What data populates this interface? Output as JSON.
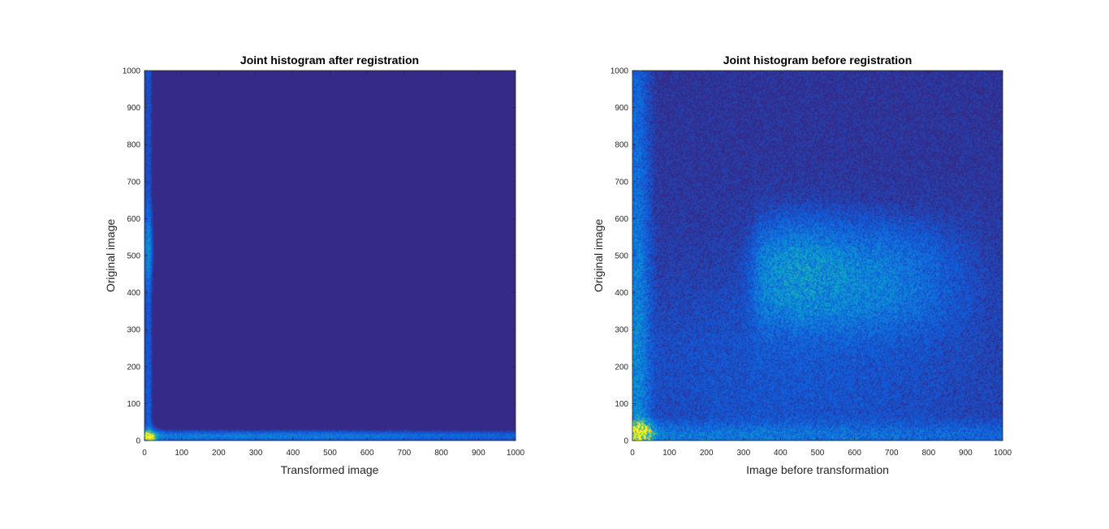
{
  "chart_data": [
    {
      "type": "heatmap",
      "title": "Joint histogram after registration",
      "xlabel": "Transformed image",
      "ylabel": "Original image",
      "xlim": [
        0,
        1000
      ],
      "ylim": [
        0,
        1000
      ],
      "xticks": [
        0,
        100,
        200,
        300,
        400,
        500,
        600,
        700,
        800,
        900,
        1000
      ],
      "yticks": [
        0,
        100,
        200,
        300,
        400,
        500,
        600,
        700,
        800,
        900,
        1000
      ],
      "colormap": "parula",
      "background_color": "#352a87",
      "density_features": [
        {
          "kind": "vertical_band",
          "x": [
            0,
            25
          ],
          "y": [
            0,
            1000
          ],
          "peak_y": [
            450,
            580
          ],
          "intensity": 0.4
        },
        {
          "kind": "horizontal_band",
          "x": [
            0,
            1000
          ],
          "y": [
            0,
            30
          ],
          "intensity": 0.35
        },
        {
          "kind": "peak",
          "x": 12,
          "y": 10,
          "intensity": 0.9
        }
      ]
    },
    {
      "type": "heatmap",
      "title": "Joint histogram before registration",
      "xlabel": "Image before transformation",
      "ylabel": "Original image",
      "xlim": [
        0,
        1000
      ],
      "ylim": [
        0,
        1000
      ],
      "xticks": [
        0,
        100,
        200,
        300,
        400,
        500,
        600,
        700,
        800,
        900,
        1000
      ],
      "yticks": [
        0,
        100,
        200,
        300,
        400,
        500,
        600,
        700,
        800,
        900,
        1000
      ],
      "colormap": "parula",
      "background_color": "#352a87",
      "density_features": [
        {
          "kind": "blob",
          "x": [
            350,
            1000
          ],
          "y": [
            300,
            570
          ],
          "peak_x": 450,
          "peak_y": 480,
          "intensity": 0.42
        },
        {
          "kind": "vertical_band",
          "x": [
            0,
            40
          ],
          "y": [
            0,
            1000
          ],
          "intensity": 0.35
        },
        {
          "kind": "horizontal_band",
          "x": [
            0,
            1000
          ],
          "y": [
            0,
            40
          ],
          "intensity": 0.3
        },
        {
          "kind": "peak",
          "x": 20,
          "y": 20,
          "intensity": 0.9
        }
      ]
    }
  ]
}
